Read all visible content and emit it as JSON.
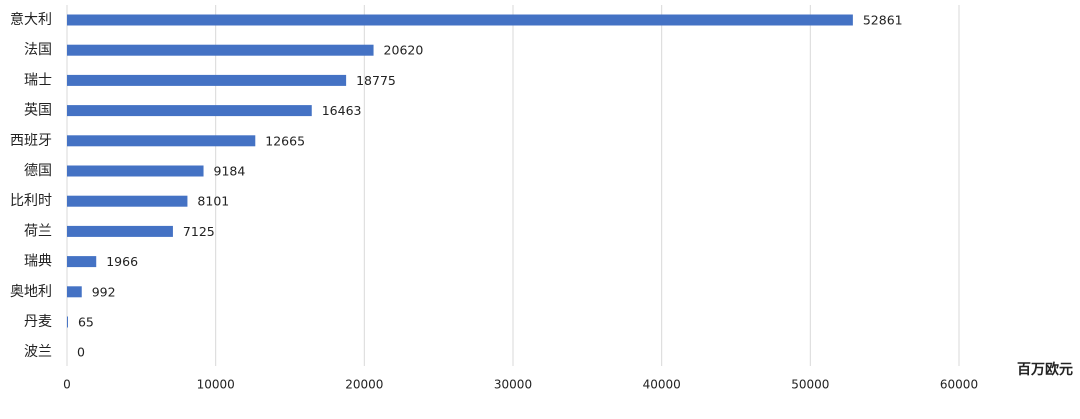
{
  "chart_data": {
    "type": "bar",
    "orientation": "horizontal",
    "categories": [
      "意大利",
      "法国",
      "瑞士",
      "英国",
      "西班牙",
      "德国",
      "比利时",
      "荷兰",
      "瑞典",
      "奥地利",
      "丹麦",
      "波兰"
    ],
    "values": [
      52861,
      20620,
      18775,
      16463,
      12665,
      9184,
      8101,
      7125,
      1966,
      992,
      65,
      0
    ],
    "color": "#4472c4",
    "x_label": "百万欧元",
    "xlim": [
      0,
      60000
    ],
    "xticks": [
      0,
      10000,
      20000,
      30000,
      40000,
      50000,
      60000
    ],
    "grid": true,
    "data_labels": true
  }
}
